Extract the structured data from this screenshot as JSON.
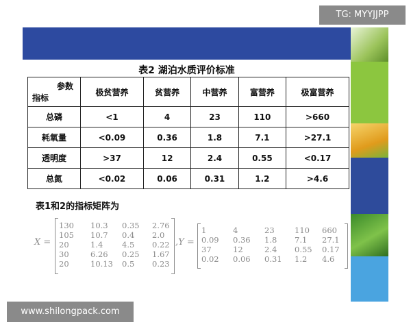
{
  "watermarks": {
    "tg": "TG: MYYJJPP",
    "site": "www.shilongpack.com"
  },
  "table": {
    "title": "表2  湖泊水质评价标准",
    "corner_top": "参数",
    "corner_bottom": "指标",
    "columns": [
      "极贫营养",
      "贫营养",
      "中营养",
      "富营养",
      "极富营养"
    ],
    "rows": [
      {
        "label": "总磷",
        "values": [
          "<1",
          "4",
          "23",
          "110",
          ">660"
        ]
      },
      {
        "label": "耗氧量",
        "values": [
          "<0.09",
          "0.36",
          "1.8",
          "7.1",
          ">27.1"
        ]
      },
      {
        "label": "透明度",
        "values": [
          ">37",
          "12",
          "2.4",
          "0.55",
          "<0.17"
        ]
      },
      {
        "label": "总氮",
        "values": [
          "<0.02",
          "0.06",
          "0.31",
          "1.2",
          ">4.6"
        ]
      }
    ]
  },
  "matrix_section": {
    "title": "表1和2的指标矩阵为",
    "x_label": "X =",
    "y_label": ",Y =",
    "X": [
      [
        "130",
        "10.3",
        "0.35",
        "2.76"
      ],
      [
        "105",
        "10.7",
        "0.4",
        "2.0"
      ],
      [
        "20",
        "1.4",
        "4.5",
        "0.22"
      ],
      [
        "30",
        "6.26",
        "0.25",
        "1.67"
      ],
      [
        "20",
        "10.13",
        "0.5",
        "0.23"
      ]
    ],
    "Y": [
      [
        "1",
        "4",
        "23",
        "110",
        "660"
      ],
      [
        "0.09",
        "0.36",
        "1.8",
        "7.1",
        "27.1"
      ],
      [
        "37",
        "12",
        "2.4",
        "0.55",
        "0.17"
      ],
      [
        "0.02",
        "0.06",
        "0.31",
        "1.2",
        "4.6"
      ]
    ]
  },
  "colors": {
    "band": "#2d4aa0",
    "side_blue": "#2e4b9b",
    "side_sky": "#4aa4e0",
    "side_green": "#8cc63f"
  }
}
